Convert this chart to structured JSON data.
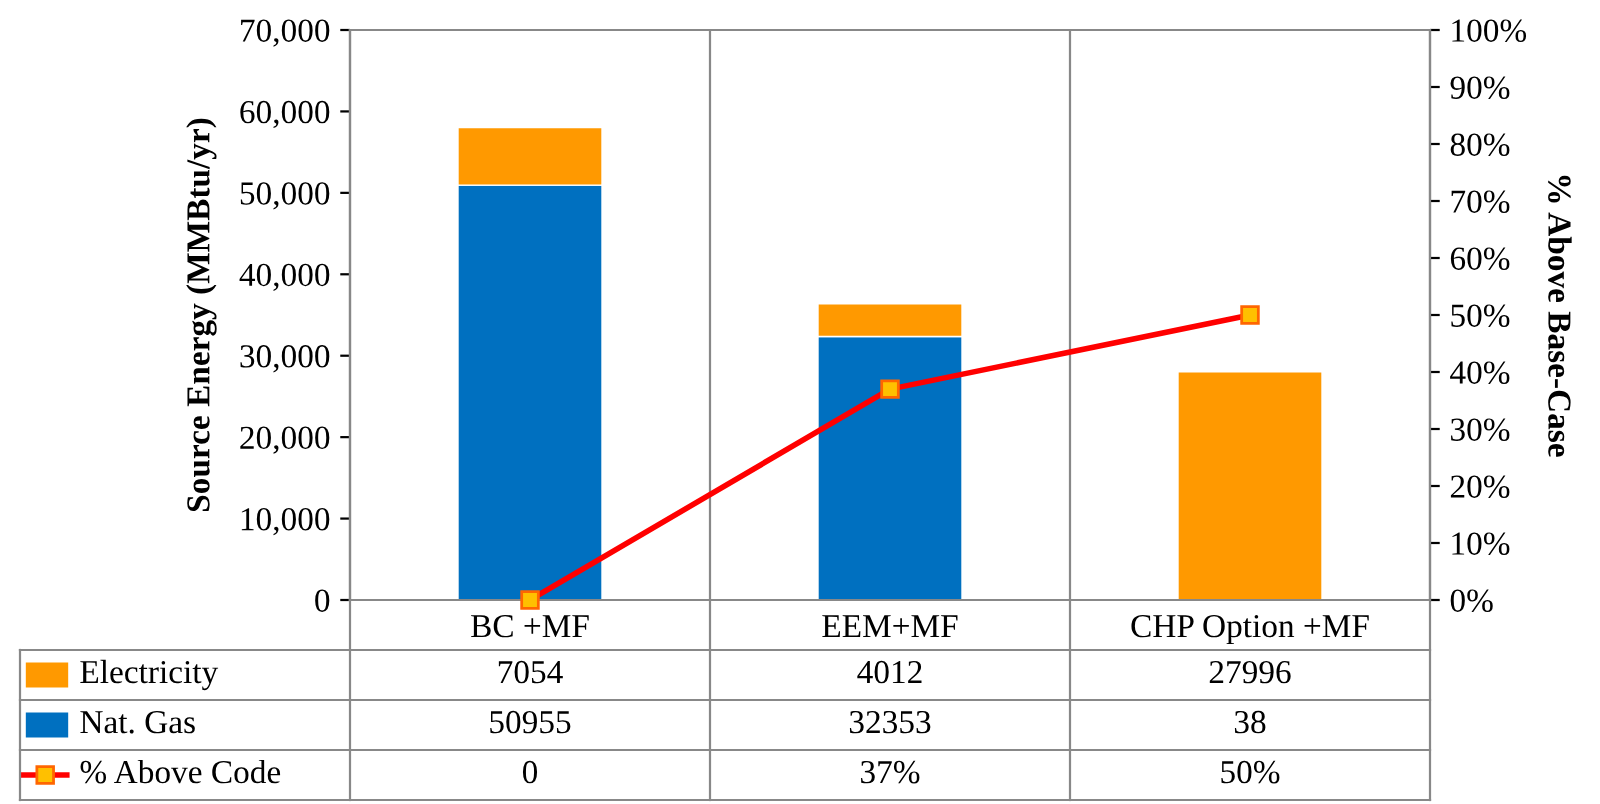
{
  "chart_data": {
    "type": "bar",
    "stacked": true,
    "ylabel": "Source Energy (MMBtu/yr)",
    "y2label": "% Above Base-Case",
    "categories": [
      "BC +MF",
      "EEM+MF",
      "CHP Option +MF"
    ],
    "series": [
      {
        "name": "Nat. Gas",
        "color": "#0070c0",
        "values": [
          50955,
          32353,
          38
        ],
        "value_labels": [
          "50955",
          "32353",
          "38"
        ]
      },
      {
        "name": "Electricity",
        "color": "#ff9900",
        "values": [
          7054,
          4012,
          27996
        ],
        "value_labels": [
          "7054",
          "4012",
          "27996"
        ]
      },
      {
        "name": "% Above Code",
        "type": "line",
        "axis": "y2",
        "color": "#ff0000",
        "marker": "square",
        "line_style": "solid",
        "values": [
          0,
          37,
          50
        ],
        "value_labels": [
          "0",
          "37%",
          "50%"
        ]
      }
    ],
    "legend": "bottom left",
    "ylim": [
      0,
      70000
    ],
    "yticks": [
      {
        "value": 0,
        "label": "0"
      },
      {
        "value": 10000,
        "label": "10,000"
      },
      {
        "value": 20000,
        "label": "20,000"
      },
      {
        "value": 30000,
        "label": "30,000"
      },
      {
        "value": 40000,
        "label": "40,000"
      },
      {
        "value": 50000,
        "label": "50,000"
      },
      {
        "value": 60000,
        "label": "60,000"
      },
      {
        "value": 70000,
        "label": "70,000"
      }
    ],
    "y2lim": [
      0,
      100
    ],
    "y2ticks": [
      {
        "value": 0,
        "label": "0%"
      },
      {
        "value": 10,
        "label": "10%"
      },
      {
        "value": 20,
        "label": "20%"
      },
      {
        "value": 30,
        "label": "30%"
      },
      {
        "value": 40,
        "label": "40%"
      },
      {
        "value": 50,
        "label": "50%"
      },
      {
        "value": 60,
        "label": "60%"
      },
      {
        "value": 70,
        "label": "70%"
      },
      {
        "value": 80,
        "label": "80%"
      },
      {
        "value": 90,
        "label": "90%"
      },
      {
        "value": 100,
        "label": "100%"
      }
    ]
  }
}
